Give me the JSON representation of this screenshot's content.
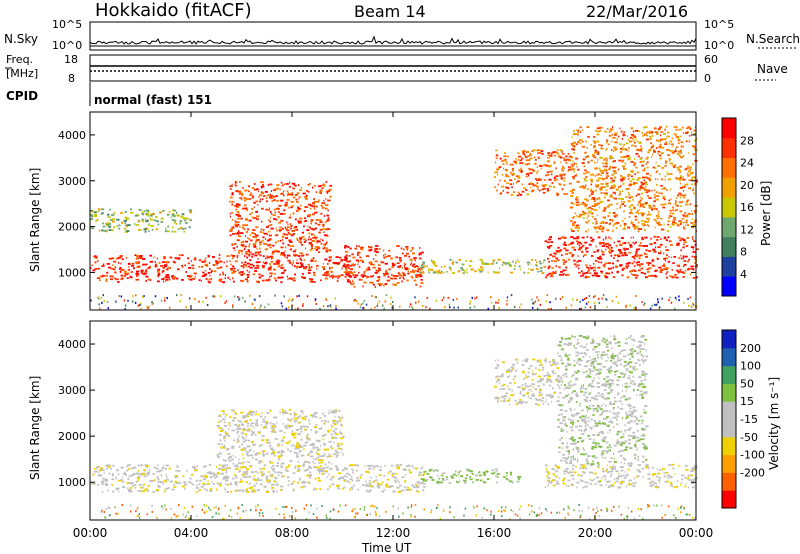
{
  "header": {
    "site": "Hokkaido (fitACF)",
    "beam": "Beam 14",
    "date": "22/Mar/2016"
  },
  "strips": {
    "nsky_label": "N.Sky",
    "nsearch_label": "N.Search",
    "noise_ticks_left": [
      "10^5",
      "10^0"
    ],
    "noise_ticks_right": [
      "10^5",
      "10^0"
    ],
    "freq_label_line1": "Freq.",
    "freq_label_line2": "[MHz]",
    "freq_ticks": [
      "18",
      "8"
    ],
    "nave_label": "Nave",
    "nave_ticks": [
      "60",
      "0"
    ],
    "cpid_label": "CPID",
    "cpid_value": "normal (fast) 151"
  },
  "colors": {
    "power_scale": [
      "#0000ff",
      "#2040a0",
      "#3f7f5f",
      "#6fa86f",
      "#c8c800",
      "#f0a000",
      "#ff7000",
      "#ff3000",
      "#ff0000"
    ],
    "velocity_scale": [
      "#ff0000",
      "#ff6000",
      "#ffa000",
      "#f0d000",
      "#c0c0c0",
      "#c0c0c0",
      "#80c040",
      "#40a060",
      "#2060b0",
      "#1020c0"
    ]
  },
  "chart_data": [
    {
      "type": "heatmap",
      "panel": "power",
      "ylabel": "Slant Range [km]",
      "yticks": [
        1000,
        2000,
        3000,
        4000
      ],
      "ylim": [
        180,
        4500
      ],
      "colorbar_label": "Power [dB]",
      "colorbar_ticks": [
        4,
        8,
        12,
        16,
        20,
        24,
        28
      ],
      "colorbar_range": [
        0,
        32
      ],
      "echo_regions": [
        {
          "t": [
            0.0,
            10.5
          ],
          "r": [
            800,
            1400
          ],
          "value": 28
        },
        {
          "t": [
            5.5,
            9.5
          ],
          "r": [
            1400,
            3000
          ],
          "value": 26
        },
        {
          "t": [
            10.0,
            13.2
          ],
          "r": [
            700,
            1600
          ],
          "value": 27
        },
        {
          "t": [
            0.0,
            4.0
          ],
          "r": [
            1900,
            2400
          ],
          "value": 14
        },
        {
          "t": [
            13.0,
            18.0
          ],
          "r": [
            1000,
            1300
          ],
          "value": 16
        },
        {
          "t": [
            16.0,
            19.0
          ],
          "r": [
            2700,
            3700
          ],
          "value": 24
        },
        {
          "t": [
            18.0,
            24.0
          ],
          "r": [
            900,
            1800
          ],
          "value": 28
        },
        {
          "t": [
            19.0,
            24.0
          ],
          "r": [
            1900,
            4200
          ],
          "value": 22
        }
      ]
    },
    {
      "type": "heatmap",
      "panel": "velocity",
      "ylabel": "Slant Range [km]",
      "xlabel": "Time UT",
      "xticks": [
        "00:00",
        "04:00",
        "08:00",
        "12:00",
        "16:00",
        "20:00",
        "00:00"
      ],
      "xlim": [
        0,
        24
      ],
      "yticks": [
        1000,
        2000,
        3000,
        4000
      ],
      "ylim": [
        180,
        4500
      ],
      "colorbar_label": "Velocity [m s⁻¹]",
      "colorbar_ticks": [
        200,
        100,
        50,
        15,
        -15,
        -50,
        -100,
        -200
      ],
      "echo_regions": [
        {
          "t": [
            0.0,
            13.2
          ],
          "r": [
            800,
            1400
          ],
          "value": 0
        },
        {
          "t": [
            5.0,
            10.0
          ],
          "r": [
            1400,
            2600
          ],
          "value": 0
        },
        {
          "t": [
            13.0,
            17.0
          ],
          "r": [
            1000,
            1300
          ],
          "value": 60
        },
        {
          "t": [
            18.0,
            24.0
          ],
          "r": [
            900,
            1400
          ],
          "value": 0
        },
        {
          "t": [
            18.5,
            22.0
          ],
          "r": [
            1400,
            4200
          ],
          "value": 40
        },
        {
          "t": [
            16.0,
            18.5
          ],
          "r": [
            2700,
            3700
          ],
          "value": 0
        }
      ]
    }
  ]
}
